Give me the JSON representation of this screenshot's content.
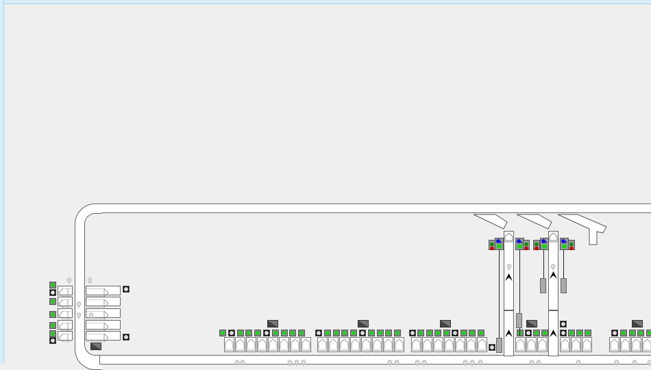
{
  "colors": {
    "background": "#efefef",
    "lamp_green": "#1fd11f",
    "lamp_white": "#dddddd",
    "lamp_red": "#c00000",
    "lamp_blue": "#1010e0",
    "block_dark": "#444444",
    "pin": "#c8c8c8"
  },
  "icons": {
    "lamp": "signal-lamp-icon",
    "pin": "location-pin-icon",
    "block": "diagonal-block-icon",
    "chevron": "chevron-up-icon"
  },
  "left_panel": {
    "lamps": [
      "green",
      "white",
      "green",
      "green",
      "green",
      "green",
      "white"
    ],
    "right_lamps": [
      "white",
      "white"
    ],
    "rows": 5
  },
  "bottom_groups": [
    {
      "tiles": 8,
      "lamps": [
        "green",
        "white",
        "green",
        "green",
        "green",
        "white",
        "green",
        "green",
        "green",
        "green"
      ]
    },
    {
      "tiles": 8,
      "lamps": [
        "white",
        "green",
        "green",
        "green",
        "green",
        "white",
        "green",
        "green",
        "green",
        "green"
      ]
    },
    {
      "tiles": 7,
      "lamps": [
        "white",
        "green",
        "green",
        "green",
        "green",
        "white",
        "green",
        "green",
        "green"
      ]
    },
    {
      "tiles": 3,
      "lamps": [
        "green",
        "white",
        "green",
        "green"
      ]
    },
    {
      "tiles": 3,
      "lamps": [
        "white",
        "green",
        "green",
        "green"
      ]
    },
    {
      "tiles": 4,
      "lamps": [
        "white",
        "green",
        "green",
        "green",
        "green"
      ]
    }
  ],
  "signal_heads": [
    {
      "type": "two-aspect",
      "aspects": [
        "green",
        "red"
      ]
    },
    {
      "type": "main",
      "aspects": [
        "blue",
        "green"
      ]
    },
    {
      "type": "main",
      "aspects": [
        "blue",
        "green"
      ]
    },
    {
      "type": "two-aspect",
      "aspects": [
        "green",
        "red"
      ]
    },
    {
      "type": "two-aspect",
      "aspects": [
        "green",
        "red"
      ]
    },
    {
      "type": "main",
      "aspects": [
        "blue",
        "green"
      ]
    },
    {
      "type": "main",
      "aspects": [
        "blue",
        "green"
      ]
    },
    {
      "type": "two-aspect",
      "aspects": [
        "green",
        "red"
      ]
    }
  ]
}
